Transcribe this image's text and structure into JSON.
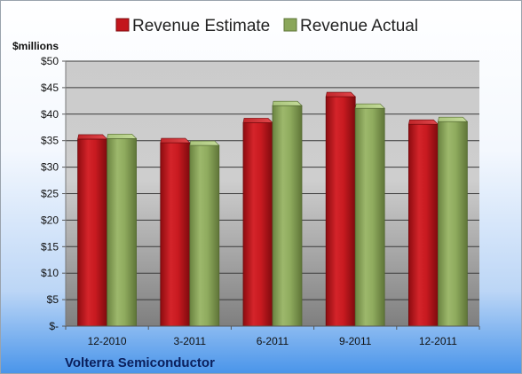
{
  "chart_data": {
    "type": "bar",
    "title": "",
    "ylabel": "$millions",
    "xlabel": "",
    "categories": [
      "12-2010",
      "3-2011",
      "6-2011",
      "9-2011",
      "12-2011"
    ],
    "series": [
      {
        "name": "Revenue Estimate",
        "values": [
          35.3,
          34.6,
          38.4,
          43.3,
          38.1
        ],
        "color": "#c3161c"
      },
      {
        "name": "Revenue Actual",
        "values": [
          35.4,
          34.1,
          41.6,
          41.1,
          38.6
        ],
        "color": "#8aa65a"
      }
    ],
    "ylim": [
      0,
      50
    ],
    "yticks": [
      0,
      5,
      10,
      15,
      20,
      25,
      30,
      35,
      40,
      45,
      50
    ],
    "ytick_labels": [
      "$-",
      "$5",
      "$10",
      "$15",
      "$20",
      "$25",
      "$30",
      "$35",
      "$40",
      "$45",
      "$50"
    ],
    "grid": true,
    "legend": "top-center",
    "footer": "Volterra Semiconductor"
  }
}
